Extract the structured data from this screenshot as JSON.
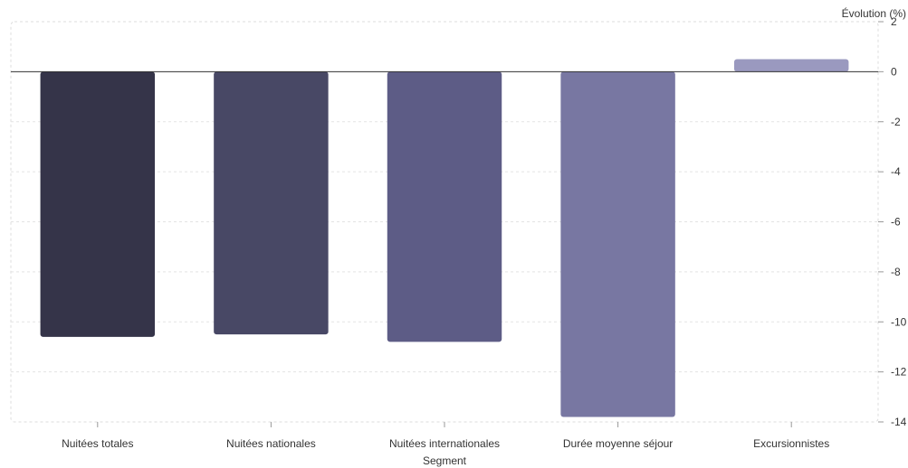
{
  "chart_data": {
    "type": "bar",
    "title": "",
    "xlabel": "Segment",
    "ylabel": "Évolution (%)",
    "categories": [
      "Nuitées totales",
      "Nuitées nationales",
      "Nuitées internationales",
      "Durée moyenne séjour",
      "Excursionnistes"
    ],
    "values": [
      -10.6,
      -10.5,
      -10.8,
      -13.8,
      0.5
    ],
    "ylim": [
      -14,
      2
    ],
    "yticks": [
      2,
      0,
      -2,
      -4,
      -6,
      -8,
      -10,
      -12,
      -14
    ],
    "grid": true,
    "y_axis_side": "right",
    "colors": [
      "#353449",
      "#484865",
      "#5d5c86",
      "#7877a2",
      "#9a99bf"
    ]
  }
}
